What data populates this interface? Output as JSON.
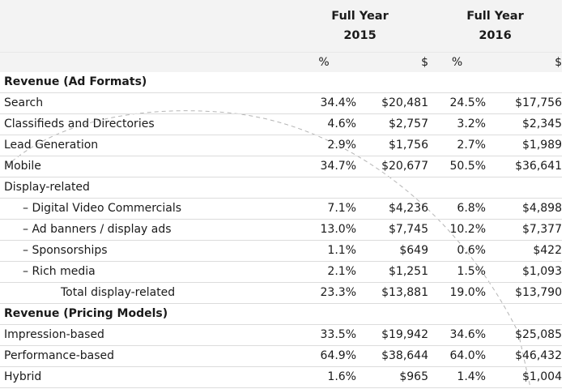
{
  "header": {
    "col1_year_top": "Full Year",
    "col1_year_bottom": "2015",
    "col2_year_top": "Full Year",
    "col2_year_bottom": "2016",
    "pct_unit": "%",
    "dollar_unit": "$"
  },
  "sections": {
    "ad_formats": "Revenue (Ad Formats)",
    "pricing_models": "Revenue (Pricing Models)"
  },
  "rows": {
    "search": {
      "label": "Search",
      "p2015": "34.4%",
      "d2015": "$20,481",
      "p2016": "24.5%",
      "d2016": "$17,756"
    },
    "classifieds": {
      "label": "Classifieds and Directories",
      "p2015": "4.6%",
      "d2015": "$2,757",
      "p2016": "3.2%",
      "d2016": "$2,345"
    },
    "lead_gen": {
      "label": "Lead Generation",
      "p2015": "2.9%",
      "d2015": "$1,756",
      "p2016": "2.7%",
      "d2016": "$1,989"
    },
    "mobile": {
      "label": "Mobile",
      "p2015": "34.7%",
      "d2015": "$20,677",
      "p2016": "50.5%",
      "d2016": "$36,641"
    },
    "display": {
      "label": "Display-related"
    },
    "video": {
      "label": "– Digital Video Commercials",
      "p2015": "7.1%",
      "d2015": "$4,236",
      "p2016": "6.8%",
      "d2016": "$4,898"
    },
    "banners": {
      "label": "– Ad banners / display ads",
      "p2015": "13.0%",
      "d2015": "$7,745",
      "p2016": "10.2%",
      "d2016": "$7,377"
    },
    "sponsorships": {
      "label": "– Sponsorships",
      "p2015": "1.1%",
      "d2015": "$649",
      "p2016": "0.6%",
      "d2016": "$422"
    },
    "rich_media": {
      "label": "– Rich media",
      "p2015": "2.1%",
      "d2015": "$1,251",
      "p2016": "1.5%",
      "d2016": "$1,093"
    },
    "total_display": {
      "label": "Total display-related",
      "p2015": "23.3%",
      "d2015": "$13,881",
      "p2016": "19.0%",
      "d2016": "$13,790"
    },
    "impression": {
      "label": "Impression-based",
      "p2015": "33.5%",
      "d2015": "$19,942",
      "p2016": "34.6%",
      "d2016": "$25,085"
    },
    "performance": {
      "label": "Performance-based",
      "p2015": "64.9%",
      "d2015": "$38,644",
      "p2016": "64.0%",
      "d2016": "$46,432"
    },
    "hybrid": {
      "label": "Hybrid",
      "p2015": "1.6%",
      "d2015": "$965",
      "p2016": "1.4%",
      "d2016": "$1,004"
    }
  },
  "colors": {
    "header_bg": "#f3f3f3",
    "rule": "#dcdcdc",
    "arc": "#b5b5b5"
  }
}
